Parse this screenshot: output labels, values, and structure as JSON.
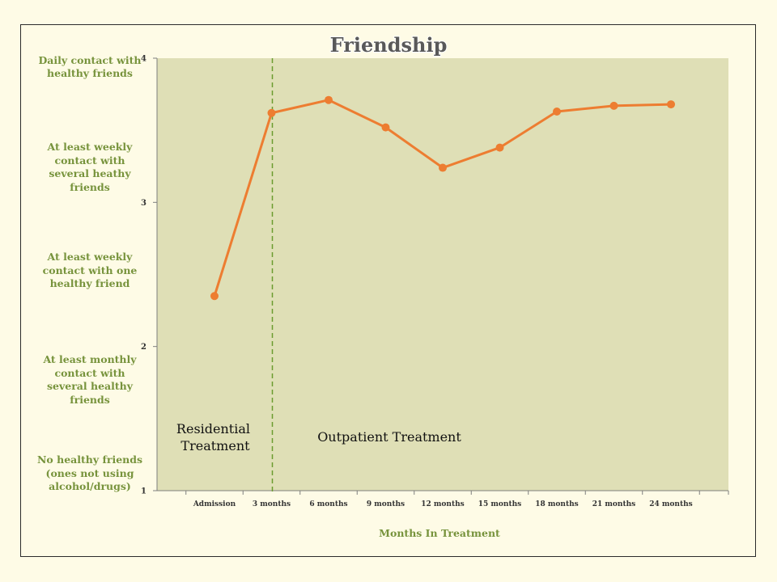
{
  "chart_data": {
    "type": "line",
    "title": "Friendship",
    "xlabel": "Months In Treatment",
    "categories": [
      "Admission",
      "3 months",
      "6 months",
      "9 months",
      "12 months",
      "15 months",
      "18 months",
      "21 months",
      "24 months"
    ],
    "series": [
      {
        "values": [
          2.35,
          3.62,
          3.71,
          3.52,
          3.24,
          3.38,
          3.63,
          3.67,
          3.68
        ],
        "color": "#ed7d31"
      }
    ],
    "yticks": [
      "1",
      "2",
      "3",
      "4"
    ],
    "ylim": [
      1,
      4
    ],
    "y_category_labels": [
      "Daily contact with healthy friends",
      "At least weekly contact with several heathy friends",
      "At least weekly contact with one healthy friend",
      "At least monthly contact with several healthy friends",
      "No healthy friends (ones not using alcohol/drugs)"
    ],
    "annotations": {
      "residential": "Residential Treatment",
      "outpatient": "Outpatient Treatment"
    },
    "divider_after_category": "3 months",
    "grid": false,
    "legend": "none",
    "colors": {
      "plot_background": "#dfdfb6",
      "page_background": "#fefbe6",
      "line": "#ed7d31",
      "label_text": "#77933c",
      "divider": "#6a9c2e"
    }
  }
}
